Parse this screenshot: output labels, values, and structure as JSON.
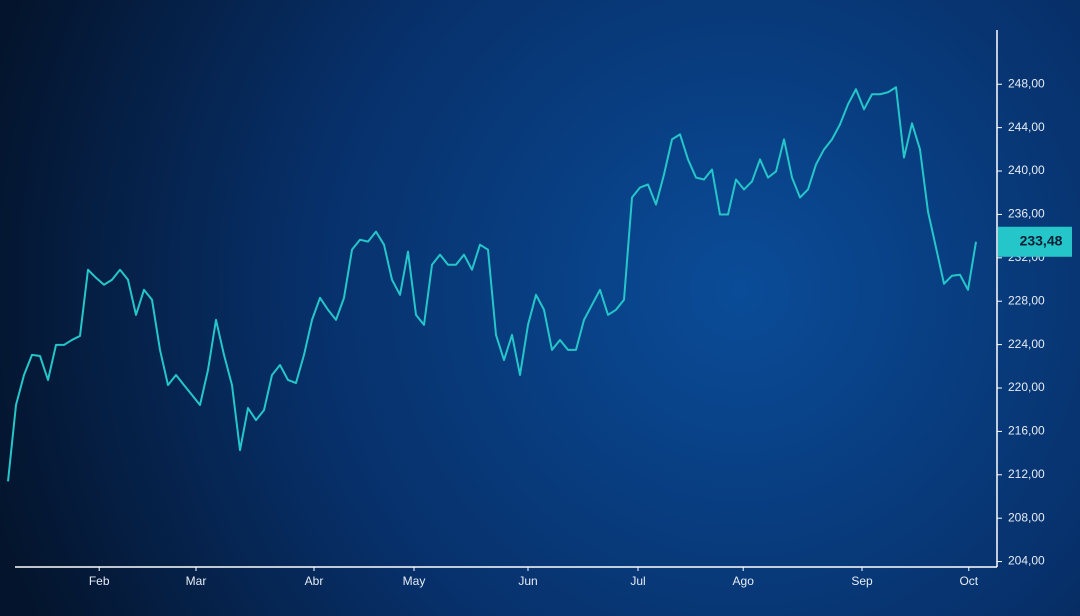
{
  "chart_data": {
    "type": "line",
    "color": "#25c6c9",
    "values": [
      211.4,
      218.43,
      221.2,
      223.05,
      222.95,
      220.74,
      223.97,
      223.97,
      224.43,
      224.8,
      230.9,
      230.16,
      229.52,
      229.98,
      230.9,
      229.98,
      226.74,
      229.05,
      228.13,
      223.51,
      220.27,
      221.2,
      220.27,
      219.35,
      218.43,
      221.66,
      226.28,
      223.05,
      220.27,
      214.27,
      218.15,
      217.04,
      217.96,
      221.2,
      222.12,
      220.74,
      220.46,
      223.05,
      226.28,
      228.31,
      227.21,
      226.28,
      228.31,
      232.75,
      233.67,
      233.49,
      234.41,
      233.21,
      229.98,
      228.59,
      232.57,
      226.74,
      225.82,
      231.36,
      232.29,
      231.36,
      231.36,
      232.29,
      230.9,
      233.21,
      232.75,
      224.89,
      222.58,
      224.89,
      221.2,
      225.82,
      228.59,
      227.21,
      223.51,
      224.43,
      223.51,
      223.51,
      226.28,
      227.67,
      229.05,
      226.74,
      227.21,
      228.13,
      237.56,
      238.48,
      238.76,
      236.91,
      239.68,
      242.92,
      243.38,
      241.07,
      239.4,
      239.22,
      240.14,
      235.99,
      235.99,
      239.22,
      238.3,
      239.04,
      241.07,
      239.4,
      239.96,
      242.92,
      239.4,
      237.56,
      238.3,
      240.61,
      241.99,
      242.92,
      244.3,
      246.15,
      247.54,
      245.69,
      247.08,
      247.08,
      247.26,
      247.72,
      241.25,
      244.4,
      241.99,
      236.26,
      232.94,
      229.61,
      230.35,
      230.44,
      229.05,
      233.48
    ],
    "xlim": [
      0,
      121
    ],
    "xticks": [
      {
        "value": 11.4,
        "label": "Feb"
      },
      {
        "value": 23.5,
        "label": "Mar"
      },
      {
        "value": 38.25,
        "label": "Abr"
      },
      {
        "value": 50.75,
        "label": "May"
      },
      {
        "value": 65,
        "label": "Jun"
      },
      {
        "value": 78.75,
        "label": "Jul"
      },
      {
        "value": 91.9,
        "label": "Ago"
      },
      {
        "value": 106.75,
        "label": "Sep"
      },
      {
        "value": 120.1,
        "label": "Oct"
      }
    ],
    "ylim": [
      203.5,
      253
    ],
    "yticks": [
      {
        "value": 204,
        "label": "204,00"
      },
      {
        "value": 208,
        "label": "208,00"
      },
      {
        "value": 212,
        "label": "212,00"
      },
      {
        "value": 216,
        "label": "216,00"
      },
      {
        "value": 220,
        "label": "220,00"
      },
      {
        "value": 224,
        "label": "224,00"
      },
      {
        "value": 228,
        "label": "228,00"
      },
      {
        "value": 232,
        "label": "232,00"
      },
      {
        "value": 236,
        "label": "236,00"
      },
      {
        "value": 240,
        "label": "240,00"
      },
      {
        "value": 244,
        "label": "244,00"
      },
      {
        "value": 248,
        "label": "248,00"
      }
    ],
    "current_price": {
      "value": 233.48,
      "label": "233,48"
    }
  }
}
